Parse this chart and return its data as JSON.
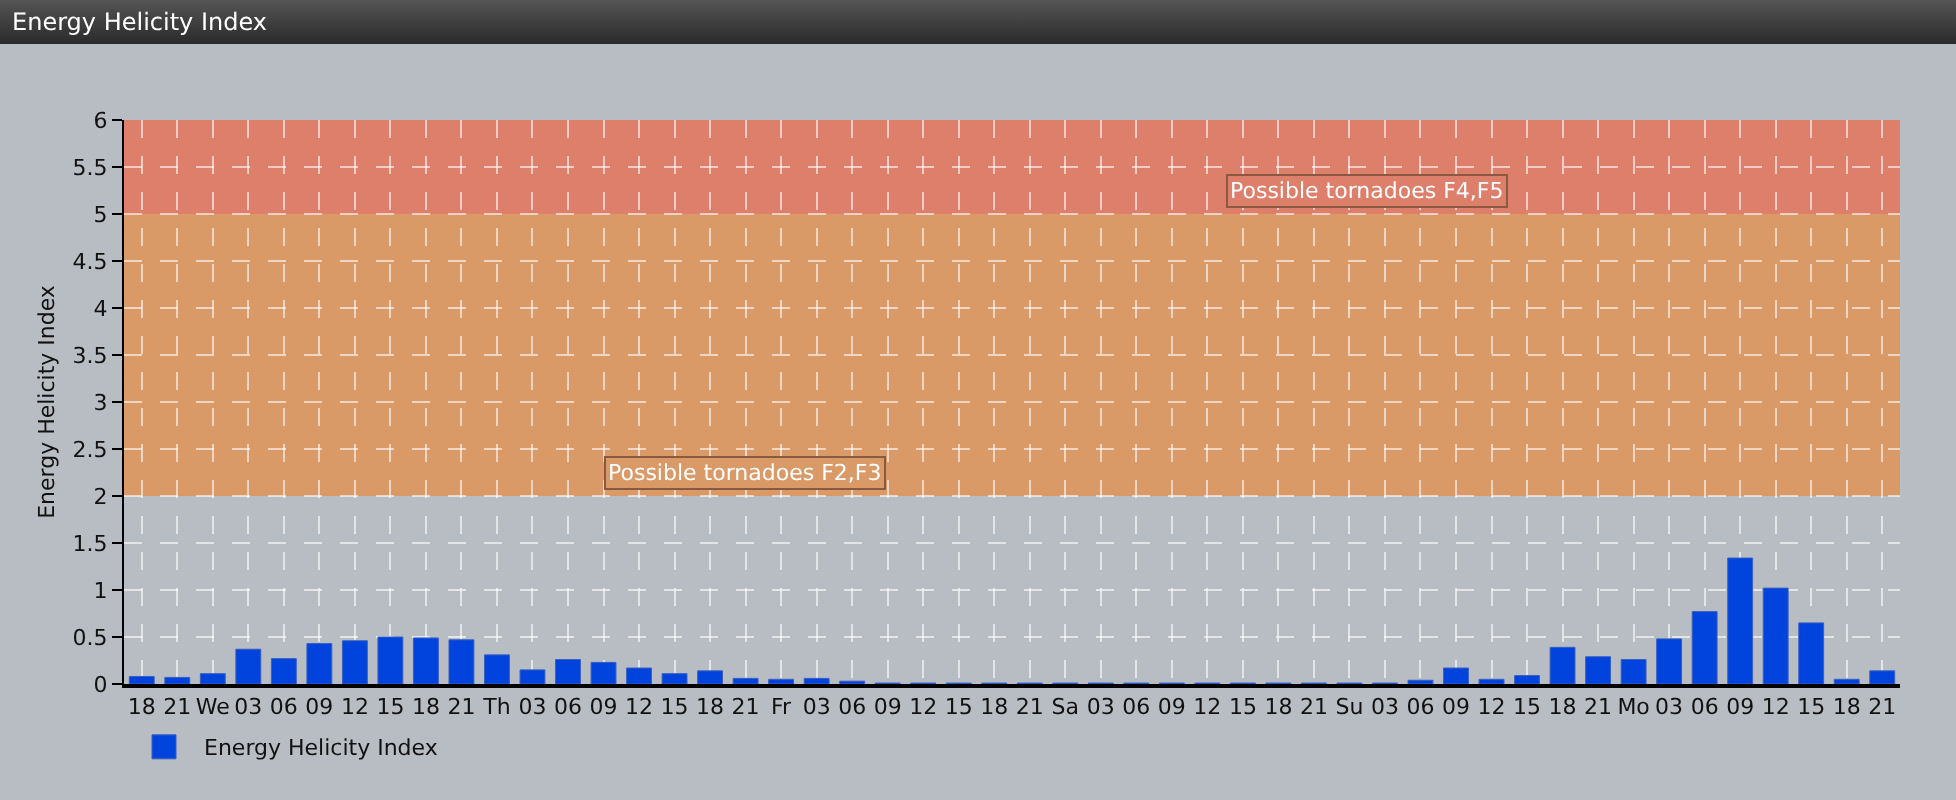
{
  "chart_data": {
    "type": "bar",
    "title": "Energy Helicity Index",
    "ylabel": "Energy Helicity Index",
    "categories": [
      "18",
      "21",
      "We",
      "03",
      "06",
      "09",
      "12",
      "15",
      "18",
      "21",
      "Th",
      "03",
      "06",
      "09",
      "12",
      "15",
      "18",
      "21",
      "Fr",
      "03",
      "06",
      "09",
      "12",
      "15",
      "18",
      "21",
      "Sa",
      "03",
      "06",
      "09",
      "12",
      "15",
      "18",
      "21",
      "Su",
      "03",
      "06",
      "09",
      "12",
      "15",
      "18",
      "21",
      "Mo",
      "03",
      "06",
      "09",
      "12",
      "15",
      "18",
      "21"
    ],
    "series": [
      {
        "name": "Energy Helicity Index",
        "color": "#0044dd",
        "values": [
          0.08,
          0.07,
          0.11,
          0.37,
          0.27,
          0.43,
          0.46,
          0.5,
          0.49,
          0.47,
          0.31,
          0.15,
          0.26,
          0.23,
          0.17,
          0.11,
          0.14,
          0.06,
          0.05,
          0.06,
          0.03,
          0.01,
          0.01,
          0.01,
          0.01,
          0.01,
          0.01,
          0.01,
          0.01,
          0.01,
          0.01,
          0.01,
          0.01,
          0.01,
          0.01,
          0.01,
          0.04,
          0.17,
          0.05,
          0.09,
          0.39,
          0.29,
          0.26,
          0.48,
          0.77,
          1.34,
          1.02,
          0.65,
          0.05,
          0.14
        ]
      }
    ],
    "ylim": [
      0,
      6
    ],
    "yticks": [
      0,
      0.5,
      1,
      1.5,
      2,
      2.5,
      3,
      3.5,
      4,
      4.5,
      5,
      5.5,
      6
    ],
    "bands": [
      {
        "axis": "y",
        "from": 2,
        "to": 5,
        "label": "Possible tornadoes F2,F3",
        "color": "#d99a68"
      },
      {
        "axis": "y",
        "from": 5,
        "to": 6,
        "label": "Possible tornadoes F4,F5",
        "color": "#de7f6c"
      }
    ],
    "grid": true,
    "legend": "bottom left"
  }
}
